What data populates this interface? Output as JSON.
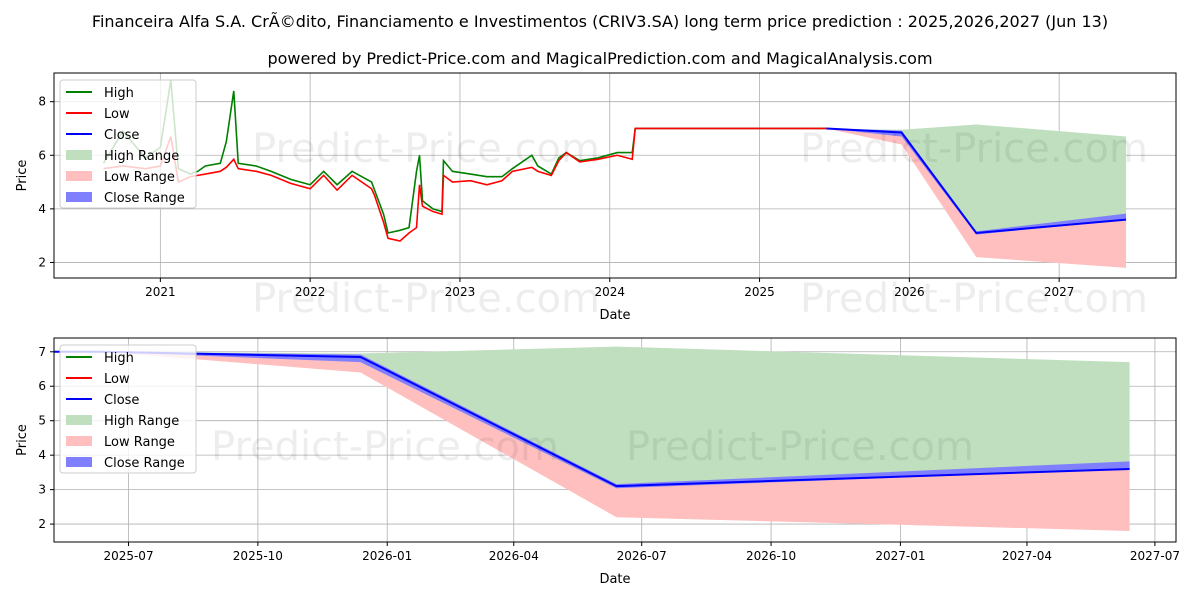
{
  "title": "Financeira Alfa S.A. CrÃ©dito, Financiamento e Investimentos (CRIV3.SA) long term price prediction : 2025,2026,2027 (Jun 13)",
  "subtitle": "powered by Predict-Price.com and MagicalPrediction.com and MagicalAnalysis.com",
  "watermark": "Predict-Price.com",
  "colors": {
    "high": "#008000",
    "low": "#ff0000",
    "close": "#0000ff",
    "high_range": "#bfdfbf",
    "low_range": "#ffbfbf",
    "close_range": "#8080ff",
    "grid": "#b0b0b0"
  },
  "chart_data": [
    {
      "type": "line",
      "xlabel": "Date",
      "ylabel": "Price",
      "xlim": [
        2020.29,
        2027.78
      ],
      "ylim": [
        1.42,
        9.07
      ],
      "grid": true,
      "legend_position": "top-left",
      "legend": [
        "High",
        "Low",
        "Close",
        "High Range",
        "Low Range",
        "Close Range"
      ],
      "xticks": [
        {
          "v": 2021,
          "label": "2021"
        },
        {
          "v": 2022,
          "label": "2022"
        },
        {
          "v": 2023,
          "label": "2023"
        },
        {
          "v": 2024,
          "label": "2024"
        },
        {
          "v": 2025,
          "label": "2025"
        },
        {
          "v": 2026,
          "label": "2026"
        },
        {
          "v": 2027,
          "label": "2027"
        }
      ],
      "yticks": [
        {
          "v": 2,
          "label": "2"
        },
        {
          "v": 4,
          "label": "4"
        },
        {
          "v": 6,
          "label": "6"
        },
        {
          "v": 8,
          "label": "8"
        }
      ],
      "history": {
        "x": [
          2020.62,
          2020.75,
          2020.9,
          2021.0,
          2021.07,
          2021.12,
          2021.2,
          2021.25,
          2021.3,
          2021.4,
          2021.44,
          2021.49,
          2021.52,
          2021.64,
          2021.74,
          2021.87,
          2022.0,
          2022.09,
          2022.18,
          2022.28,
          2022.41,
          2022.43,
          2022.49,
          2022.52,
          2022.6,
          2022.66,
          2022.71,
          2022.73,
          2022.75,
          2022.82,
          2022.88,
          2022.89,
          2022.95,
          2023.07,
          2023.18,
          2023.28,
          2023.35,
          2023.48,
          2023.52,
          2023.61,
          2023.66,
          2023.71,
          2023.8,
          2023.92,
          2024.05,
          2024.15,
          2024.17,
          2024.25,
          2025.45
        ],
        "high": [
          5.7,
          6.9,
          5.9,
          6.3,
          8.8,
          5.5,
          5.3,
          5.4,
          5.6,
          5.7,
          6.5,
          8.4,
          5.7,
          5.6,
          5.4,
          5.1,
          4.9,
          5.4,
          4.9,
          5.4,
          5.0,
          4.7,
          3.8,
          3.1,
          3.2,
          3.3,
          5.4,
          6.0,
          4.3,
          4.0,
          3.9,
          5.8,
          5.4,
          5.3,
          5.2,
          5.2,
          5.5,
          6.0,
          5.6,
          5.3,
          5.9,
          6.1,
          5.8,
          5.9,
          6.1,
          6.1,
          7.0,
          7.0,
          7.0
        ],
        "low": [
          5.5,
          5.6,
          5.5,
          5.6,
          6.7,
          5.0,
          5.2,
          5.25,
          5.3,
          5.4,
          5.55,
          5.85,
          5.5,
          5.4,
          5.25,
          4.95,
          4.75,
          5.25,
          4.7,
          5.25,
          4.75,
          4.5,
          3.5,
          2.9,
          2.8,
          3.1,
          3.3,
          4.9,
          4.1,
          3.9,
          3.8,
          5.25,
          5.0,
          5.05,
          4.9,
          5.05,
          5.4,
          5.55,
          5.4,
          5.25,
          5.8,
          6.1,
          5.75,
          5.85,
          6.0,
          5.85,
          7.0,
          7.0,
          7.0
        ]
      }
    },
    {
      "type": "line",
      "xlabel": "Date",
      "ylabel": "Price",
      "xlim": [
        "2025-05-09",
        "2027-07-16"
      ],
      "ylim": [
        1.48,
        7.4
      ],
      "grid": true,
      "legend_position": "top-left",
      "legend": [
        "High",
        "Low",
        "Close",
        "High Range",
        "Low Range",
        "Close Range"
      ],
      "xticks": [
        {
          "v": "2025-07-01",
          "label": "2025-07"
        },
        {
          "v": "2025-10-01",
          "label": "2025-10"
        },
        {
          "v": "2026-01-01",
          "label": "2026-01"
        },
        {
          "v": "2026-04-01",
          "label": "2026-04"
        },
        {
          "v": "2026-07-01",
          "label": "2026-07"
        },
        {
          "v": "2026-10-01",
          "label": "2026-10"
        },
        {
          "v": "2027-01-01",
          "label": "2027-01"
        },
        {
          "v": "2027-04-01",
          "label": "2027-04"
        },
        {
          "v": "2027-07-01",
          "label": "2027-07"
        }
      ],
      "yticks": [
        {
          "v": 2,
          "label": "2"
        },
        {
          "v": 3,
          "label": "3"
        },
        {
          "v": 4,
          "label": "4"
        },
        {
          "v": 5,
          "label": "5"
        },
        {
          "v": 6,
          "label": "6"
        },
        {
          "v": 7,
          "label": "7"
        }
      ],
      "history_close": {
        "x": [
          "2025-05-09",
          "2025-06-13"
        ],
        "y": [
          7.0,
          7.0
        ]
      }
    }
  ],
  "forecast": {
    "dates": [
      "2025-06-13",
      "2025-12-13",
      "2026-06-13",
      "2027-06-13"
    ],
    "close": [
      7.0,
      6.85,
      3.1,
      3.6
    ],
    "close_upper": [
      7.0,
      6.92,
      3.16,
      3.82
    ],
    "close_lower": [
      7.0,
      6.7,
      3.04,
      3.6
    ],
    "high": [
      7.0,
      6.95,
      7.15,
      6.7
    ],
    "low": [
      7.0,
      6.4,
      2.2,
      1.8
    ]
  }
}
